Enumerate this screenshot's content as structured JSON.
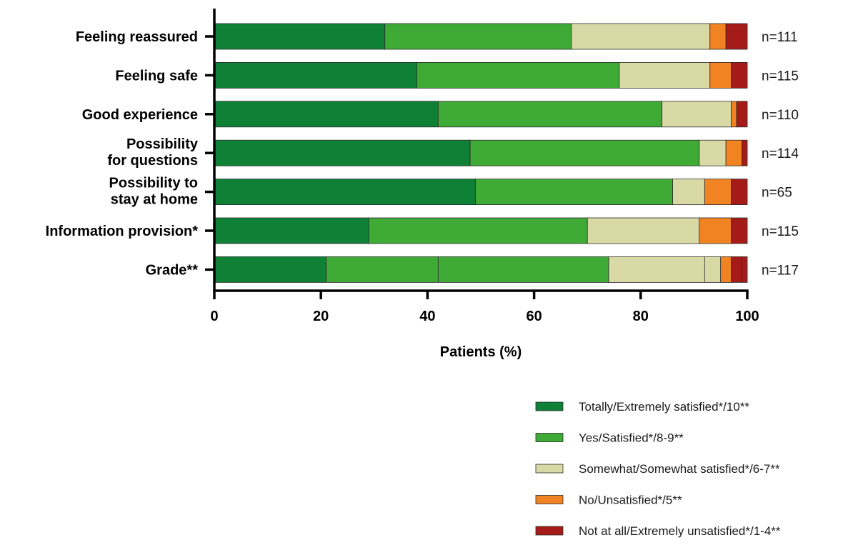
{
  "chart_data": {
    "type": "bar",
    "orientation": "horizontal",
    "stacked": true,
    "xlabel": "Patients (%)",
    "xlim": [
      0,
      100
    ],
    "xticks": [
      0,
      20,
      40,
      60,
      80,
      100
    ],
    "grid": false,
    "legend_position": "bottom-right",
    "categories": [
      "Feeling reassured",
      "Feeling safe",
      "Good experience",
      "Possibility for questions",
      "Possibility to stay at home",
      "Information provision*",
      "Grade**"
    ],
    "category_label_lines": [
      [
        "Feeling reassured"
      ],
      [
        "Feeling safe"
      ],
      [
        "Good experience"
      ],
      [
        "Possibility",
        "for questions"
      ],
      [
        "Possibility to",
        "stay at home"
      ],
      [
        "Information provision*"
      ],
      [
        "Grade**"
      ]
    ],
    "n_labels": [
      "n=111",
      "n=115",
      "n=110",
      "n=114",
      "n=65",
      "n=115",
      "n=117"
    ],
    "series": [
      {
        "name": "Totally/Extremely satisfied*/10**",
        "color": "#0e8137",
        "values": [
          32,
          38,
          42,
          48,
          49,
          29,
          21
        ]
      },
      {
        "name": "Yes/Satisfied*/8-9**",
        "color": "#40aa37",
        "values": [
          35,
          38,
          42,
          43,
          37,
          41,
          53
        ]
      },
      {
        "name": "Somewhat/Somewhat satisfied*/6-7**",
        "color": "#d8d9a4",
        "values": [
          26,
          17,
          13,
          5,
          6,
          21,
          21
        ]
      },
      {
        "name": "No/Unsatisfied*/5**",
        "color": "#f28322",
        "values": [
          3,
          4,
          1,
          3,
          5,
          6,
          2
        ]
      },
      {
        "name": "Not at all/Extremely unsatisfied*/1-4**",
        "color": "#a51b17",
        "values": [
          4,
          3,
          2,
          1,
          3,
          3,
          3
        ]
      }
    ],
    "subdivisions": [
      {
        "category_index": 6,
        "series_index": 1,
        "at": 42
      },
      {
        "category_index": 6,
        "series_index": 2,
        "at": 92
      },
      {
        "category_index": 6,
        "series_index": 4,
        "at": 99
      }
    ]
  }
}
